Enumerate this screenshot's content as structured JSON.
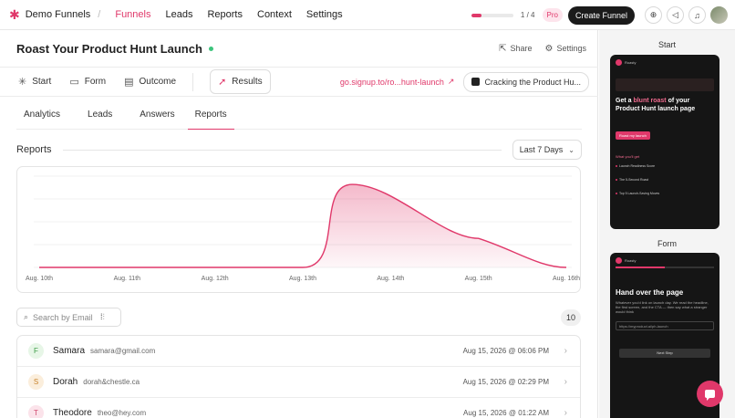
{
  "topbar": {
    "brand": "Demo Funnels",
    "nav": [
      "Funnels",
      "Leads",
      "Reports",
      "Context",
      "Settings"
    ],
    "active_nav": "Funnels",
    "progress_text": "1 / 4",
    "progress_fraction": 0.25,
    "pro_badge": "Pro",
    "create_button": "Create Funnel"
  },
  "funnel": {
    "title": "Roast Your Product Hunt Launch",
    "share_label": "Share",
    "settings_label": "Settings"
  },
  "steps": {
    "start": "Start",
    "form": "Form",
    "outcome": "Outcome",
    "results": "Results",
    "link_text": "go.signup.to/ro...hunt-launch",
    "cracking_label": "Cracking the Product Hu..."
  },
  "subtabs": [
    "Analytics",
    "Leads",
    "Answers",
    "Reports"
  ],
  "reports": {
    "label": "Reports",
    "range": "Last 7 Days"
  },
  "chart_data": {
    "type": "area",
    "categories": [
      "Aug. 10th",
      "Aug. 11th",
      "Aug. 12th",
      "Aug. 13th",
      "Aug. 14th",
      "Aug. 15th",
      "Aug. 16th"
    ],
    "values": [
      0,
      0,
      0,
      0,
      10,
      3.5,
      0
    ],
    "peak_position": 0.55,
    "ylim": [
      0,
      11
    ],
    "grid": true,
    "color": "#e0386a"
  },
  "search": {
    "placeholder": "Search by Email",
    "count": "10"
  },
  "leads": [
    {
      "initial": "F",
      "name": "Samara",
      "email": "samara@gmail.com",
      "date": "Aug 15, 2026 @ 06:06 PM",
      "bg": "#e7f6e7",
      "fg": "#3a9a45"
    },
    {
      "initial": "S",
      "name": "Dorah",
      "email": "dorah&chestle.ca",
      "date": "Aug 15, 2026 @ 02:29 PM",
      "bg": "#fbeedc",
      "fg": "#c8822a"
    },
    {
      "initial": "T",
      "name": "Theodore",
      "email": "theo@hey.com",
      "date": "Aug 15, 2026 @ 01:22 AM",
      "bg": "#fbe3ea",
      "fg": "#d0486e"
    }
  ],
  "sidebar": {
    "start_label": "Start",
    "form_label": "Form",
    "start_preview": {
      "brand": "Roasty",
      "headline_pre": "Get a ",
      "headline_hl": "blunt roast",
      "headline_post": " of your Product Hunt launch page",
      "button": "Roast my launch",
      "section": "What you'll get",
      "items": [
        "Launch Readiness Score",
        "The 5-Second Roast",
        "Top 5 Launch-Saving Moves"
      ]
    },
    "form_preview": {
      "brand": "Roasty",
      "headline": "Hand over the page",
      "text": "Whatever you'd link on launch day. We read the headline, the first screen, and the CTA — then say what a stranger would think",
      "input_placeholder": "https://myproduct.ai/ph-launch",
      "button": "Next Step"
    }
  }
}
